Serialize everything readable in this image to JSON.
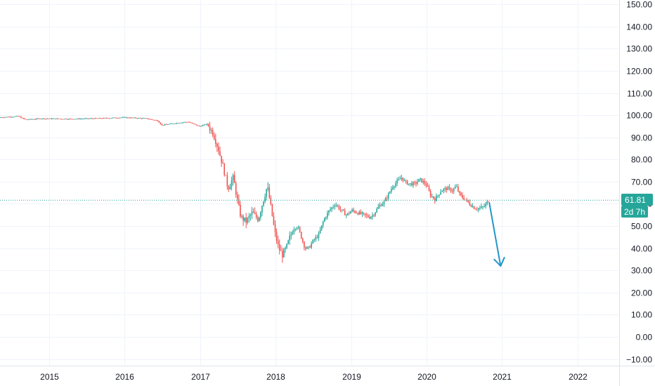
{
  "chart_data": {
    "type": "candlestick",
    "title": "",
    "xlabel": "",
    "ylabel": "",
    "x_ticks": [
      "2015",
      "2016",
      "2017",
      "2018",
      "2019",
      "2020",
      "2021",
      "2022"
    ],
    "y_ticks": [
      "150.00",
      "140.00",
      "130.00",
      "120.00",
      "110.00",
      "100.00",
      "90.00",
      "80.00",
      "70.00",
      "60.00",
      "50.00",
      "40.00",
      "30.00",
      "20.00",
      "10.00",
      "0.00",
      "−10.00"
    ],
    "ylim": [
      -13,
      152
    ],
    "xlim": [
      2014.35,
      2022.55
    ],
    "grid": true,
    "last_price": "61.81",
    "countdown": "2d 7h",
    "colors": {
      "up": "#26a69a",
      "down": "#ef5350",
      "last_price_line": "#26a69a",
      "arrow": "#2196c9",
      "grid": "#f0f3fa",
      "axis_border": "#e0e3eb"
    },
    "price_path": [
      [
        2014.35,
        99.0
      ],
      [
        2014.6,
        99.5
      ],
      [
        2014.7,
        98.0
      ],
      [
        2014.9,
        98.5
      ],
      [
        2015.3,
        98.3
      ],
      [
        2015.7,
        98.6
      ],
      [
        2016.0,
        99.0
      ],
      [
        2016.3,
        98.5
      ],
      [
        2016.45,
        97.5
      ],
      [
        2016.5,
        95.5
      ],
      [
        2016.7,
        96.5
      ],
      [
        2016.85,
        97.0
      ],
      [
        2017.0,
        95.0
      ],
      [
        2017.1,
        96.0
      ],
      [
        2017.18,
        92.0
      ],
      [
        2017.25,
        85.0
      ],
      [
        2017.32,
        76.0
      ],
      [
        2017.38,
        67.0
      ],
      [
        2017.45,
        72.0
      ],
      [
        2017.5,
        62.0
      ],
      [
        2017.55,
        54.0
      ],
      [
        2017.62,
        52.0
      ],
      [
        2017.7,
        56.0
      ],
      [
        2017.78,
        53.0
      ],
      [
        2017.85,
        62.0
      ],
      [
        2017.9,
        68.0
      ],
      [
        2017.95,
        58.0
      ],
      [
        2018.0,
        47.0
      ],
      [
        2018.05,
        40.0
      ],
      [
        2018.1,
        37.0
      ],
      [
        2018.15,
        40.0
      ],
      [
        2018.2,
        45.0
      ],
      [
        2018.25,
        49.0
      ],
      [
        2018.3,
        50.0
      ],
      [
        2018.35,
        45.0
      ],
      [
        2018.4,
        40.0
      ],
      [
        2018.45,
        40.0
      ],
      [
        2018.5,
        43.0
      ],
      [
        2018.58,
        46.0
      ],
      [
        2018.65,
        53.0
      ],
      [
        2018.72,
        57.0
      ],
      [
        2018.8,
        60.0
      ],
      [
        2018.88,
        57.0
      ],
      [
        2018.95,
        55.0
      ],
      [
        2019.02,
        57.0
      ],
      [
        2019.1,
        56.0
      ],
      [
        2019.18,
        55.0
      ],
      [
        2019.25,
        54.0
      ],
      [
        2019.3,
        55.0
      ],
      [
        2019.38,
        59.0
      ],
      [
        2019.45,
        61.0
      ],
      [
        2019.5,
        64.0
      ],
      [
        2019.56,
        68.0
      ],
      [
        2019.62,
        70.0
      ],
      [
        2019.68,
        72.0
      ],
      [
        2019.72,
        70.0
      ],
      [
        2019.78,
        69.0
      ],
      [
        2019.85,
        69.0
      ],
      [
        2019.92,
        71.0
      ],
      [
        2020.0,
        69.0
      ],
      [
        2020.06,
        64.0
      ],
      [
        2020.12,
        62.0
      ],
      [
        2020.2,
        66.0
      ],
      [
        2020.28,
        67.0
      ],
      [
        2020.35,
        66.0
      ],
      [
        2020.4,
        68.0
      ],
      [
        2020.45,
        64.0
      ],
      [
        2020.52,
        62.0
      ],
      [
        2020.58,
        60.0
      ],
      [
        2020.65,
        58.0
      ],
      [
        2020.72,
        58.0
      ],
      [
        2020.78,
        59.0
      ],
      [
        2020.83,
        61.8
      ]
    ],
    "projection_arrow": {
      "from": [
        2020.83,
        60.5
      ],
      "to": [
        2020.98,
        32.0
      ]
    }
  }
}
